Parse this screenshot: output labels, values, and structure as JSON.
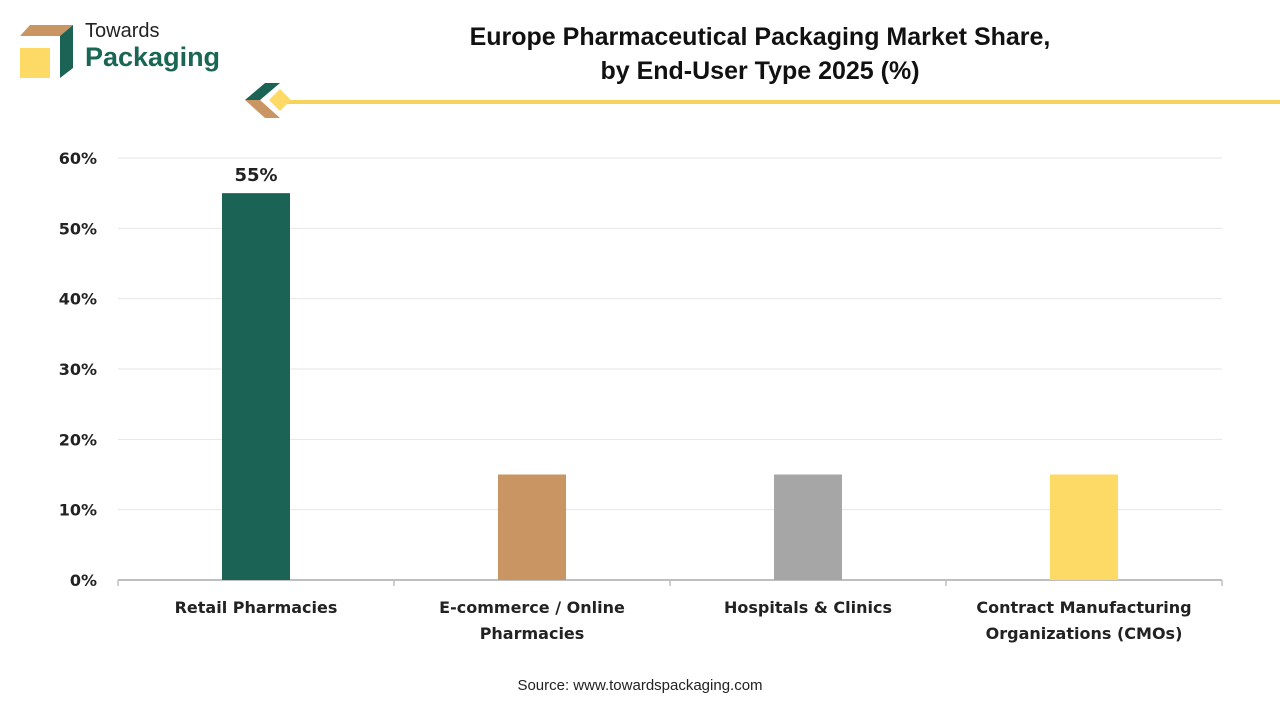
{
  "logo": {
    "line1": "Towards",
    "line2": "Packaging"
  },
  "chart_data": {
    "type": "bar",
    "title": "Europe Pharmaceutical Packaging Market Share, by End-User Type 2025 (%)",
    "title_lines": [
      "Europe Pharmaceutical Packaging Market Share,",
      "by End-User Type 2025 (%)"
    ],
    "categories": [
      [
        "Retail Pharmacies"
      ],
      [
        "E-commerce / Online",
        "Pharmacies"
      ],
      [
        "Hospitals & Clinics"
      ],
      [
        "Contract Manufacturing",
        "Organizations (CMOs)"
      ]
    ],
    "values": [
      55,
      15,
      15,
      15
    ],
    "colors": [
      "#1a6355",
      "#c99663",
      "#a6a6a6",
      "#fdd966"
    ],
    "data_labels": [
      "55%",
      "",
      "",
      ""
    ],
    "ylim": [
      0,
      60
    ],
    "yticks": [
      0,
      10,
      20,
      30,
      40,
      50,
      60
    ],
    "ytick_labels": [
      "0%",
      "10%",
      "20%",
      "30%",
      "40%",
      "50%",
      "60%"
    ],
    "xlabel": "",
    "ylabel": "",
    "grid": true
  },
  "source": "Source: www.towardspackaging.com"
}
